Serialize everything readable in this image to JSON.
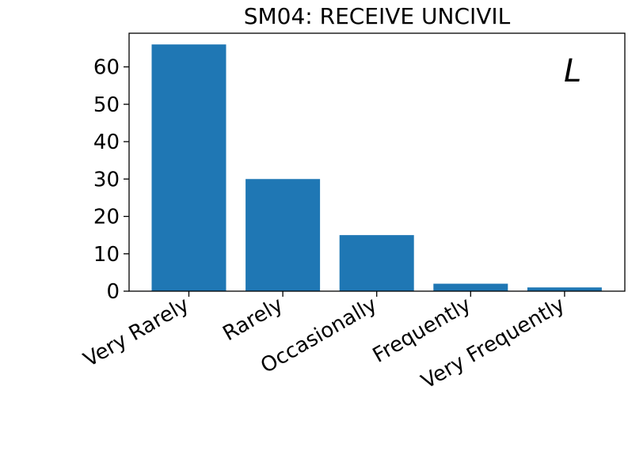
{
  "chart_data": {
    "type": "bar",
    "title": "SM04: RECEIVE UNCIVIL",
    "panel_label": "L",
    "categories": [
      "Very Rarely",
      "Rarely",
      "Occasionally",
      "Frequently",
      "Very Frequently"
    ],
    "values": [
      66,
      30,
      15,
      2,
      1
    ],
    "ylim": [
      0,
      69
    ],
    "yticks": [
      0,
      10,
      20,
      30,
      40,
      50,
      60
    ],
    "xlabel": "",
    "ylabel": "",
    "bar_color": "#1f77b4",
    "grid": false,
    "legend": "none"
  }
}
